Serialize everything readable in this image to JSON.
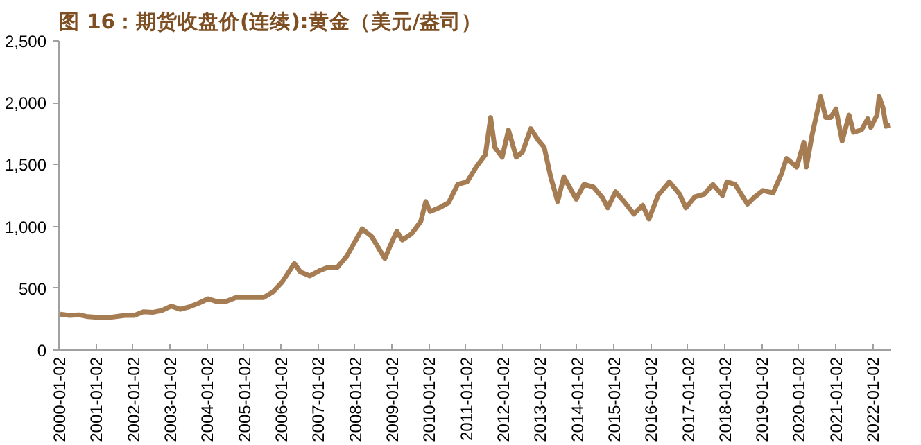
{
  "chart_data": {
    "type": "line",
    "title": "图 16：期货收盘价(连续):黄金（美元/盎司）",
    "x": [
      "2000-01-15",
      "2000-04-15",
      "2000-07-15",
      "2000-10-15",
      "2001-01-15",
      "2001-04-15",
      "2001-07-15",
      "2001-10-15",
      "2002-01-15",
      "2002-04-15",
      "2002-07-15",
      "2002-10-15",
      "2003-01-15",
      "2003-04-15",
      "2003-07-15",
      "2003-10-15",
      "2004-01-15",
      "2004-04-15",
      "2004-07-15",
      "2004-10-15",
      "2005-01-15",
      "2005-04-15",
      "2005-07-15",
      "2005-10-15",
      "2006-01-15",
      "2006-05-15",
      "2006-07-15",
      "2006-10-15",
      "2007-01-15",
      "2007-04-15",
      "2007-07-15",
      "2007-10-15",
      "2008-03-15",
      "2008-06-15",
      "2008-10-25",
      "2008-12-15",
      "2009-02-20",
      "2009-04-15",
      "2009-07-15",
      "2009-10-15",
      "2009-12-03",
      "2010-01-15",
      "2010-04-15",
      "2010-07-15",
      "2010-10-15",
      "2011-01-15",
      "2011-04-15",
      "2011-07-15",
      "2011-09-05",
      "2011-10-15",
      "2011-12-28",
      "2012-02-28",
      "2012-05-15",
      "2012-07-15",
      "2012-10-05",
      "2012-12-15",
      "2013-02-15",
      "2013-04-20",
      "2013-06-28",
      "2013-08-28",
      "2013-12-28",
      "2014-03-15",
      "2014-06-15",
      "2014-09-15",
      "2014-11-05",
      "2015-01-20",
      "2015-04-15",
      "2015-07-20",
      "2015-10-15",
      "2015-12-17",
      "2016-03-15",
      "2016-07-06",
      "2016-10-15",
      "2016-12-15",
      "2017-03-15",
      "2017-06-15",
      "2017-09-08",
      "2017-12-12",
      "2018-01-25",
      "2018-04-15",
      "2018-08-15",
      "2018-10-15",
      "2019-01-15",
      "2019-04-25",
      "2019-07-15",
      "2019-09-05",
      "2019-12-15",
      "2020-02-24",
      "2020-03-19",
      "2020-05-15",
      "2020-08-06",
      "2020-09-28",
      "2020-11-15",
      "2021-01-05",
      "2021-03-08",
      "2021-05-15",
      "2021-06-28",
      "2021-09-15",
      "2021-11-15",
      "2021-12-15",
      "2022-02-15",
      "2022-03-08",
      "2022-04-15",
      "2022-05-15",
      "2022-06-28"
    ],
    "series": [
      {
        "color": "#a67c52",
        "values": [
          290,
          280,
          285,
          270,
          265,
          260,
          270,
          280,
          280,
          310,
          305,
          320,
          355,
          330,
          350,
          380,
          415,
          390,
          395,
          425,
          425,
          425,
          425,
          470,
          550,
          700,
          630,
          600,
          640,
          670,
          670,
          760,
          980,
          920,
          740,
          840,
          960,
          890,
          940,
          1040,
          1200,
          1120,
          1150,
          1190,
          1340,
          1360,
          1480,
          1580,
          1880,
          1640,
          1560,
          1780,
          1560,
          1600,
          1790,
          1700,
          1640,
          1400,
          1200,
          1400,
          1220,
          1340,
          1320,
          1230,
          1150,
          1280,
          1200,
          1100,
          1170,
          1060,
          1250,
          1360,
          1260,
          1150,
          1240,
          1260,
          1340,
          1250,
          1360,
          1340,
          1180,
          1230,
          1290,
          1270,
          1420,
          1550,
          1480,
          1680,
          1480,
          1740,
          2050,
          1880,
          1880,
          1950,
          1690,
          1900,
          1760,
          1780,
          1870,
          1800,
          1900,
          2050,
          1960,
          1810,
          1820
        ]
      }
    ],
    "xlim": [
      "2000-01-02",
      "2022-07-05"
    ],
    "xticks": [
      {
        "value": "2000-01-02",
        "label": "2000-01-02"
      },
      {
        "value": "2001-01-02",
        "label": "2001-01-02"
      },
      {
        "value": "2002-01-02",
        "label": "2002-01-02"
      },
      {
        "value": "2003-01-02",
        "label": "2003-01-02"
      },
      {
        "value": "2004-01-02",
        "label": "2004-01-02"
      },
      {
        "value": "2005-01-02",
        "label": "2005-01-02"
      },
      {
        "value": "2006-01-02",
        "label": "2006-01-02"
      },
      {
        "value": "2007-01-02",
        "label": "2007-01-02"
      },
      {
        "value": "2008-01-02",
        "label": "2008-01-02"
      },
      {
        "value": "2009-01-02",
        "label": "2009-01-02"
      },
      {
        "value": "2010-01-02",
        "label": "2010-01-02"
      },
      {
        "value": "2011-01-02",
        "label": "2011-01-02"
      },
      {
        "value": "2012-01-02",
        "label": "2012-01-02"
      },
      {
        "value": "2013-01-02",
        "label": "2013-01-02"
      },
      {
        "value": "2014-01-02",
        "label": "2014-01-02"
      },
      {
        "value": "2015-01-02",
        "label": "2015-01-02"
      },
      {
        "value": "2016-01-02",
        "label": "2016-01-02"
      },
      {
        "value": "2017-01-02",
        "label": "2017-01-02"
      },
      {
        "value": "2018-01-02",
        "label": "2018-01-02"
      },
      {
        "value": "2019-01-02",
        "label": "2019-01-02"
      },
      {
        "value": "2020-01-02",
        "label": "2020-01-02"
      },
      {
        "value": "2021-01-02",
        "label": "2021-01-02"
      },
      {
        "value": "2022-01-02",
        "label": "2022-01-02"
      }
    ],
    "ylim": [
      0,
      2500
    ],
    "yticks": [
      0,
      {
        "value": 500,
        "label": "500"
      },
      {
        "value": 1000,
        "label": "1,000"
      },
      {
        "value": 1500,
        "label": "1,500"
      },
      {
        "value": 2000,
        "label": "2,000"
      },
      {
        "value": 2500,
        "label": "2,500"
      }
    ],
    "grid": false,
    "line_style": "solid"
  }
}
